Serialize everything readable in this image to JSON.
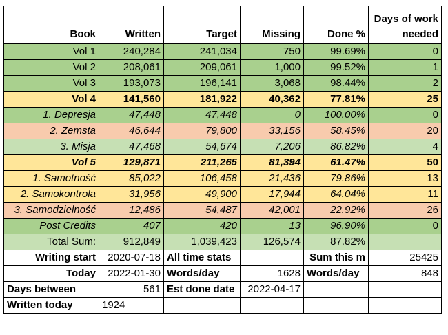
{
  "headers": {
    "book": "Book",
    "written": "Written",
    "target": "Target",
    "missing": "Missing",
    "done": "Done %",
    "days": "Days of work needed"
  },
  "rows": [
    {
      "book": "Vol 1",
      "written": "240,284",
      "target": "241,034",
      "missing": "750",
      "done": "99.69%",
      "days": "0"
    },
    {
      "book": "Vol 2",
      "written": "208,061",
      "target": "209,061",
      "missing": "1,000",
      "done": "99.52%",
      "days": "1"
    },
    {
      "book": "Vol 3",
      "written": "193,073",
      "target": "196,141",
      "missing": "3,068",
      "done": "98.44%",
      "days": "2"
    },
    {
      "book": "Vol 4",
      "written": "141,560",
      "target": "181,922",
      "missing": "40,362",
      "done": "77.81%",
      "days": "25"
    },
    {
      "book": "1. Depresja",
      "written": "47,448",
      "target": "47,448",
      "missing": "0",
      "done": "100.00%",
      "days": "0"
    },
    {
      "book": "2. Zemsta",
      "written": "46,644",
      "target": "79,800",
      "missing": "33,156",
      "done": "58.45%",
      "days": "20"
    },
    {
      "book": "3. Misja",
      "written": "47,468",
      "target": "54,674",
      "missing": "7,206",
      "done": "86.82%",
      "days": "4"
    },
    {
      "book": "Vol 5",
      "written": "129,871",
      "target": "211,265",
      "missing": "81,394",
      "done": "61.47%",
      "days": "50"
    },
    {
      "book": "1. Samotność",
      "written": "85,022",
      "target": "106,458",
      "missing": "21,436",
      "done": "79.86%",
      "days": "13"
    },
    {
      "book": "2. Samokontrola",
      "written": "31,956",
      "target": "49,900",
      "missing": "17,944",
      "done": "64.04%",
      "days": "11"
    },
    {
      "book": "3. Samodzielność",
      "written": "12,486",
      "target": "54,487",
      "missing": "42,001",
      "done": "22.92%",
      "days": "26"
    },
    {
      "book": "Post Credits",
      "written": "407",
      "target": "420",
      "missing": "13",
      "done": "96.90%",
      "days": "0"
    },
    {
      "book": "Total Sum:",
      "written": "912,849",
      "target": "1,039,423",
      "missing": "126,574",
      "done": "87.82%",
      "days": ""
    }
  ],
  "stats": {
    "writing_start_label": "Writing start",
    "writing_start_value": "2020-07-18",
    "all_time_stats_label": "All time stats",
    "sum_this_m_label": "Sum this m",
    "sum_this_m_value": "25425",
    "today_label": "Today",
    "today_value": "2022-01-30",
    "words_day_label": "Words/day",
    "words_day_all_value": "1628",
    "words_day_label_2": "Words/day",
    "words_day_month_value": "848",
    "days_between_label": "Days between",
    "days_between_value": "561",
    "est_done_label": "Est done date",
    "est_done_value": "2022-04-17",
    "written_today_label": "Written today",
    "written_today_value": "1924"
  }
}
